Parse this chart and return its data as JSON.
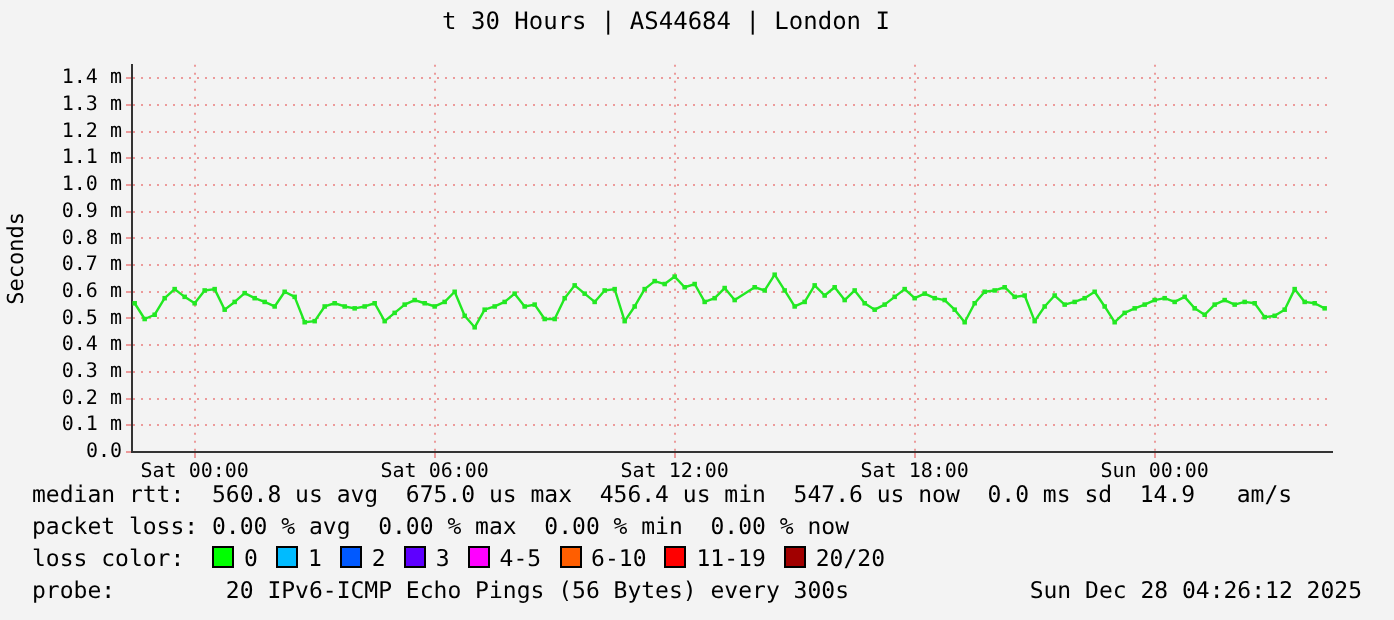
{
  "chart_data": {
    "type": "line",
    "title": "t 30 Hours | AS44684 | London I",
    "ylabel": "Seconds",
    "x": [
      "2025-12-26T22:30",
      "2025-12-26T22:45",
      "2025-12-26T23:00",
      "2025-12-26T23:15",
      "2025-12-26T23:30",
      "2025-12-26T23:45",
      "2025-12-27T00:00",
      "2025-12-27T00:15",
      "2025-12-27T00:30",
      "2025-12-27T00:45",
      "2025-12-27T01:00",
      "2025-12-27T01:15",
      "2025-12-27T01:30",
      "2025-12-27T01:45",
      "2025-12-27T02:00",
      "2025-12-27T02:15",
      "2025-12-27T02:30",
      "2025-12-27T02:45",
      "2025-12-27T03:00",
      "2025-12-27T03:15",
      "2025-12-27T03:30",
      "2025-12-27T03:45",
      "2025-12-27T04:00",
      "2025-12-27T04:15",
      "2025-12-27T04:30",
      "2025-12-27T04:45",
      "2025-12-27T05:00",
      "2025-12-27T05:15",
      "2025-12-27T05:30",
      "2025-12-27T05:45",
      "2025-12-27T06:00",
      "2025-12-27T06:15",
      "2025-12-27T06:30",
      "2025-12-27T06:45",
      "2025-12-27T07:00",
      "2025-12-27T07:15",
      "2025-12-27T07:30",
      "2025-12-27T07:45",
      "2025-12-27T08:00",
      "2025-12-27T08:15",
      "2025-12-27T08:30",
      "2025-12-27T08:45",
      "2025-12-27T09:00",
      "2025-12-27T09:15",
      "2025-12-27T09:30",
      "2025-12-27T09:45",
      "2025-12-27T10:00",
      "2025-12-27T10:15",
      "2025-12-27T10:30",
      "2025-12-27T10:45",
      "2025-12-27T11:00",
      "2025-12-27T11:15",
      "2025-12-27T11:30",
      "2025-12-27T11:45",
      "2025-12-27T12:00",
      "2025-12-27T12:15",
      "2025-12-27T12:30",
      "2025-12-27T12:45",
      "2025-12-27T13:00",
      "2025-12-27T13:15",
      "2025-12-27T13:30",
      "2025-12-27T14:00",
      "2025-12-27T14:15",
      "2025-12-27T14:30",
      "2025-12-27T14:45",
      "2025-12-27T15:00",
      "2025-12-27T15:15",
      "2025-12-27T15:30",
      "2025-12-27T15:45",
      "2025-12-27T16:00",
      "2025-12-27T16:15",
      "2025-12-27T16:30",
      "2025-12-27T16:45",
      "2025-12-27T17:00",
      "2025-12-27T17:15",
      "2025-12-27T17:30",
      "2025-12-27T17:45",
      "2025-12-27T18:00",
      "2025-12-27T18:15",
      "2025-12-27T18:30",
      "2025-12-27T18:45",
      "2025-12-27T19:00",
      "2025-12-27T19:15",
      "2025-12-27T19:30",
      "2025-12-27T19:45",
      "2025-12-27T20:00",
      "2025-12-27T20:15",
      "2025-12-27T20:30",
      "2025-12-27T20:45",
      "2025-12-27T21:00",
      "2025-12-27T21:15",
      "2025-12-27T21:30",
      "2025-12-27T21:45",
      "2025-12-27T22:00",
      "2025-12-27T22:15",
      "2025-12-27T22:30",
      "2025-12-27T22:45",
      "2025-12-27T23:00",
      "2025-12-27T23:15",
      "2025-12-27T23:30",
      "2025-12-27T23:45",
      "2025-12-28T00:00",
      "2025-12-28T00:15",
      "2025-12-28T00:30",
      "2025-12-28T00:45",
      "2025-12-28T01:00",
      "2025-12-28T01:15",
      "2025-12-28T01:30",
      "2025-12-28T01:45",
      "2025-12-28T02:00",
      "2025-12-28T02:15",
      "2025-12-28T02:30",
      "2025-12-28T02:45",
      "2025-12-28T03:00",
      "2025-12-28T03:15",
      "2025-12-28T03:30",
      "2025-12-28T03:45",
      "2025-12-28T04:00",
      "2025-12-28T04:15"
    ],
    "series": [
      {
        "color": "#22e822",
        "values": [
          0.557,
          0.498,
          0.514,
          0.576,
          0.61,
          0.581,
          0.557,
          0.605,
          0.61,
          0.533,
          0.562,
          0.595,
          0.576,
          0.562,
          0.545,
          0.6,
          0.581,
          0.486,
          0.49,
          0.545,
          0.557,
          0.545,
          0.538,
          0.545,
          0.557,
          0.49,
          0.521,
          0.552,
          0.569,
          0.557,
          0.545,
          0.562,
          0.6,
          0.51,
          0.467,
          0.533,
          0.545,
          0.562,
          0.593,
          0.545,
          0.552,
          0.498,
          0.498,
          0.576,
          0.624,
          0.593,
          0.562,
          0.605,
          0.61,
          0.49,
          0.545,
          0.61,
          0.64,
          0.629,
          0.657,
          0.617,
          0.629,
          0.562,
          0.576,
          0.614,
          0.569,
          0.617,
          0.605,
          0.664,
          0.605,
          0.545,
          0.562,
          0.624,
          0.586,
          0.617,
          0.569,
          0.605,
          0.557,
          0.533,
          0.552,
          0.581,
          0.61,
          0.576,
          0.593,
          0.576,
          0.569,
          0.533,
          0.486,
          0.557,
          0.6,
          0.605,
          0.617,
          0.581,
          0.586,
          0.49,
          0.545,
          0.586,
          0.552,
          0.562,
          0.576,
          0.6,
          0.545,
          0.486,
          0.521,
          0.538,
          0.552,
          0.569,
          0.576,
          0.562,
          0.581,
          0.538,
          0.514,
          0.552,
          0.569,
          0.552,
          0.562,
          0.557,
          0.505,
          0.51,
          0.533,
          0.61,
          0.562,
          0.557,
          0.538
        ]
      }
    ],
    "xlim": [
      "2025-12-26T22:26",
      "2025-12-28T04:26"
    ],
    "xticks": [
      {
        "value": "2025-12-27T00:00",
        "label": "Sat 00:00"
      },
      {
        "value": "2025-12-27T06:00",
        "label": "Sat 06:00"
      },
      {
        "value": "2025-12-27T12:00",
        "label": "Sat 12:00"
      },
      {
        "value": "2025-12-27T18:00",
        "label": "Sat 18:00"
      },
      {
        "value": "2025-12-28T00:00",
        "label": "Sun 00:00"
      }
    ],
    "ylim": [
      0,
      1.45
    ],
    "yticks": [
      {
        "value": 0,
        "label": "0.0"
      },
      {
        "value": 0.1,
        "label": "0.1 m"
      },
      {
        "value": 0.2,
        "label": "0.2 m"
      },
      {
        "value": 0.3,
        "label": "0.3 m"
      },
      {
        "value": 0.4,
        "label": "0.4 m"
      },
      {
        "value": 0.5,
        "label": "0.5 m"
      },
      {
        "value": 0.6,
        "label": "0.6 m"
      },
      {
        "value": 0.7,
        "label": "0.7 m"
      },
      {
        "value": 0.8,
        "label": "0.8 m"
      },
      {
        "value": 0.9,
        "label": "0.9 m"
      },
      {
        "value": 1.0,
        "label": "1.0 m"
      },
      {
        "value": 1.1,
        "label": "1.1 m"
      },
      {
        "value": 1.2,
        "label": "1.2 m"
      },
      {
        "value": 1.3,
        "label": "1.3 m"
      },
      {
        "value": 1.4,
        "label": "1.4 m"
      }
    ],
    "grid": true,
    "legend": false,
    "marker": "square",
    "line_style": "solid",
    "annotations": [
      "median rtt:  560.8 us avg  675.0 us max  456.4 us min  547.6 us now  0.0 ms sd  14.9   am/s",
      "packet loss: 0.00 % avg  0.00 % max  0.00 % min  0.00 % now",
      "loss color:",
      "0",
      "1",
      "2",
      "3",
      "4-5",
      "6-10",
      "11-19",
      "20/20",
      "probe:        20 IPv6-ICMP Echo Pings (56 Bytes) every 300s",
      "Sun Dec 28 04:26:12 2025"
    ]
  }
}
